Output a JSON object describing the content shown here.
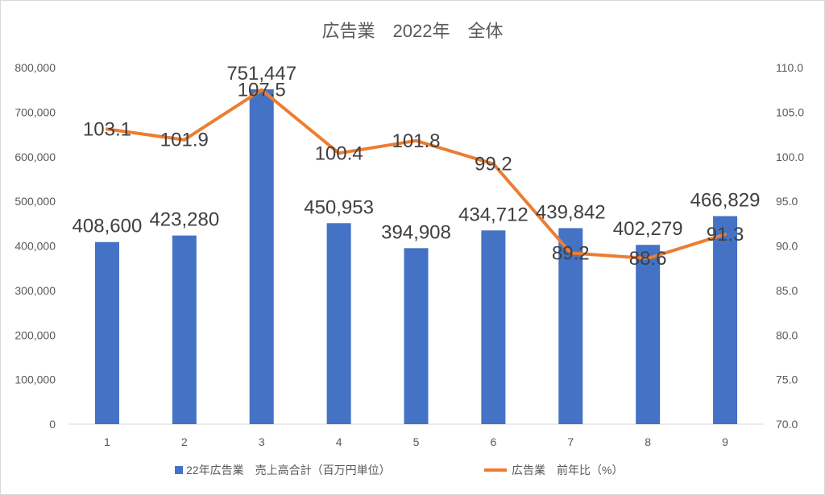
{
  "colors": {
    "bar": "#4472c4",
    "line": "#ed7d31",
    "text": "#595959",
    "label": "#404040",
    "grid": "#d9d9d9"
  },
  "chart_data": {
    "type": "bar",
    "title": "広告業　2022年　全体",
    "categories": [
      "1",
      "2",
      "3",
      "4",
      "5",
      "6",
      "7",
      "8",
      "9"
    ],
    "y_left": {
      "lim": [
        0,
        800000
      ],
      "ticks": [
        "0",
        "100,000",
        "200,000",
        "300,000",
        "400,000",
        "500,000",
        "600,000",
        "700,000",
        "800,000"
      ]
    },
    "y_right": {
      "lim": [
        70,
        110
      ],
      "ticks": [
        "70.0",
        "75.0",
        "80.0",
        "85.0",
        "90.0",
        "95.0",
        "100.0",
        "105.0",
        "110.0"
      ]
    },
    "grid": false,
    "legend_position": "bottom",
    "series": [
      {
        "name": "22年広告業　売上高合計（百万円単位）",
        "type": "bar",
        "axis": "left",
        "values": [
          408600,
          423280,
          751447,
          450953,
          394908,
          434712,
          439842,
          402279,
          466829
        ],
        "labels": [
          "408,600",
          "423,280",
          "751,447",
          "450,953",
          "394,908",
          "434,712",
          "439,842",
          "402,279",
          "466,829"
        ]
      },
      {
        "name": "広告業　前年比（%）",
        "type": "line",
        "axis": "right",
        "values": [
          103.1,
          101.9,
          107.5,
          100.4,
          101.8,
          99.2,
          89.2,
          88.6,
          91.3
        ],
        "labels": [
          "103.1",
          "101.9",
          "107.5",
          "100.4",
          "101.8",
          "99.2",
          "89.2",
          "88.6",
          "91.3"
        ]
      }
    ]
  }
}
